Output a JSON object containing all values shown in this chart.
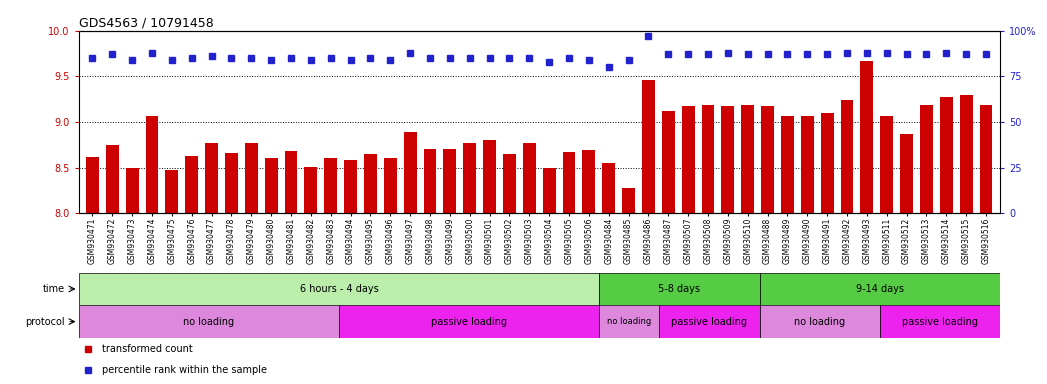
{
  "title": "GDS4563 / 10791458",
  "samples": [
    "GSM930471",
    "GSM930472",
    "GSM930473",
    "GSM930474",
    "GSM930475",
    "GSM930476",
    "GSM930477",
    "GSM930478",
    "GSM930479",
    "GSM930480",
    "GSM930481",
    "GSM930482",
    "GSM930483",
    "GSM930494",
    "GSM930495",
    "GSM930496",
    "GSM930497",
    "GSM930498",
    "GSM930499",
    "GSM930500",
    "GSM930501",
    "GSM930502",
    "GSM930503",
    "GSM930504",
    "GSM930505",
    "GSM930506",
    "GSM930484",
    "GSM930485",
    "GSM930486",
    "GSM930487",
    "GSM930507",
    "GSM930508",
    "GSM930509",
    "GSM930510",
    "GSM930488",
    "GSM930489",
    "GSM930490",
    "GSM930491",
    "GSM930492",
    "GSM930493",
    "GSM930511",
    "GSM930512",
    "GSM930513",
    "GSM930514",
    "GSM930515",
    "GSM930516"
  ],
  "bar_values": [
    8.61,
    8.75,
    8.5,
    9.07,
    8.47,
    8.63,
    8.77,
    8.66,
    8.77,
    8.6,
    8.68,
    8.51,
    8.6,
    8.58,
    8.65,
    8.6,
    8.89,
    8.7,
    8.7,
    8.77,
    8.8,
    8.65,
    8.77,
    8.5,
    8.67,
    8.69,
    8.55,
    8.27,
    9.46,
    9.12,
    9.18,
    9.19,
    9.18,
    9.19,
    9.18,
    9.07,
    9.07,
    9.1,
    9.24,
    9.67,
    9.07,
    8.87,
    9.19,
    9.27,
    9.3,
    9.19
  ],
  "percentile_values": [
    85,
    87,
    84,
    88,
    84,
    85,
    86,
    85,
    85,
    84,
    85,
    84,
    85,
    84,
    85,
    84,
    88,
    85,
    85,
    85,
    85,
    85,
    85,
    83,
    85,
    84,
    80,
    84,
    97,
    87,
    87,
    87,
    88,
    87,
    87,
    87,
    87,
    87,
    88,
    88,
    88,
    87,
    87,
    88,
    87,
    87
  ],
  "ylim_left": [
    8.0,
    10.0
  ],
  "ylim_right": [
    0,
    100
  ],
  "yticks_left": [
    8.0,
    8.5,
    9.0,
    9.5,
    10.0
  ],
  "yticks_right": [
    0,
    25,
    50,
    75,
    100
  ],
  "bar_color": "#CC0000",
  "dot_color": "#2222CC",
  "time_groups": [
    {
      "label": "6 hours - 4 days",
      "start": 0,
      "end": 26,
      "color": "#BBEEAA"
    },
    {
      "label": "5-8 days",
      "start": 26,
      "end": 34,
      "color": "#55CC44"
    },
    {
      "label": "9-14 days",
      "start": 34,
      "end": 46,
      "color": "#55CC44"
    }
  ],
  "protocol_groups": [
    {
      "label": "no loading",
      "start": 0,
      "end": 13,
      "color": "#DD88DD"
    },
    {
      "label": "passive loading",
      "start": 13,
      "end": 26,
      "color": "#EE22EE"
    },
    {
      "label": "no loading",
      "start": 26,
      "end": 29,
      "color": "#DD88DD"
    },
    {
      "label": "passive loading",
      "start": 29,
      "end": 34,
      "color": "#EE22EE"
    },
    {
      "label": "no loading",
      "start": 34,
      "end": 40,
      "color": "#DD88DD"
    },
    {
      "label": "passive loading",
      "start": 40,
      "end": 46,
      "color": "#EE22EE"
    }
  ],
  "legend_items": [
    {
      "label": "transformed count",
      "color": "#CC0000"
    },
    {
      "label": "percentile rank within the sample",
      "color": "#2222CC"
    }
  ],
  "background_color": "#FFFFFF",
  "grid_color": "#000000",
  "left_label_color": "#CC0000",
  "right_label_color": "#2222CC"
}
